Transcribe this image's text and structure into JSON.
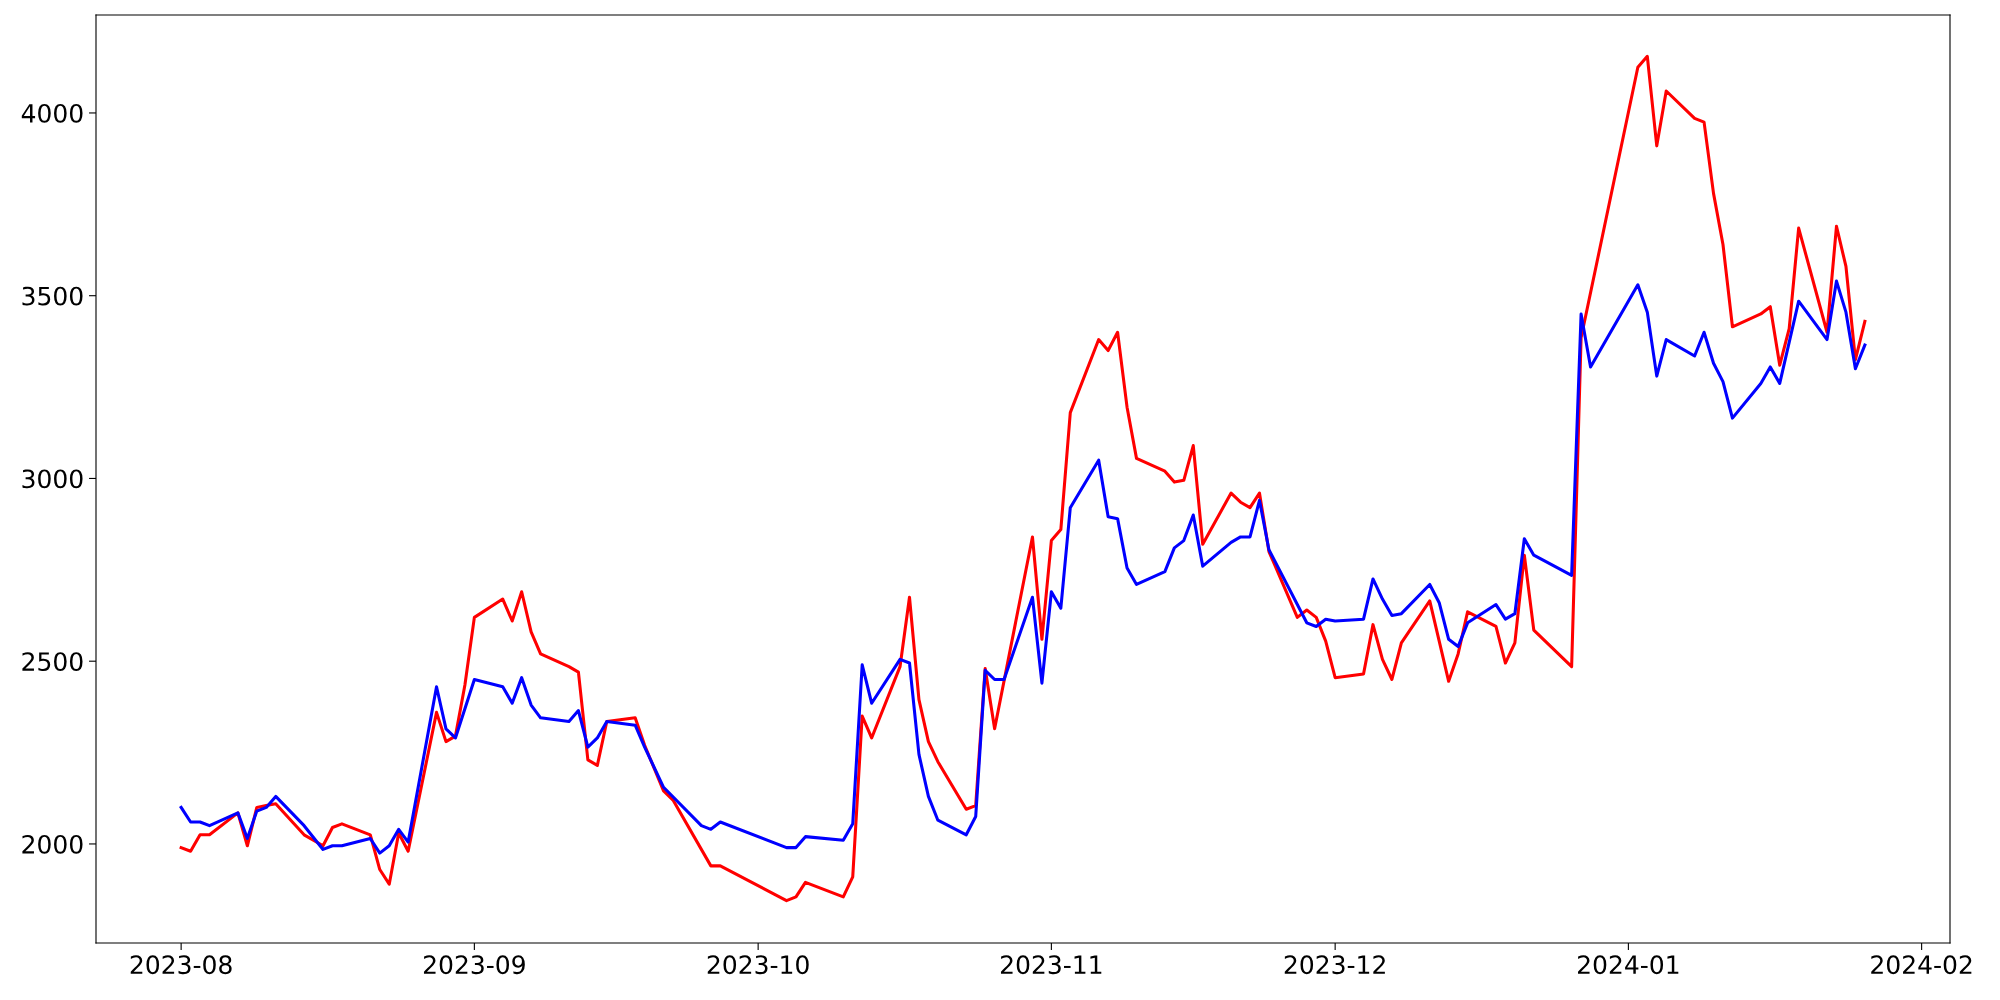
{
  "chart_data": {
    "type": "line",
    "xlim": [
      "2023-07-23",
      "2024-02-04"
    ],
    "xticks": [
      {
        "value": "2023-08-01",
        "label": "2023-08"
      },
      {
        "value": "2023-09-01",
        "label": "2023-09"
      },
      {
        "value": "2023-10-01",
        "label": "2023-10"
      },
      {
        "value": "2023-11-01",
        "label": "2023-11"
      },
      {
        "value": "2023-12-01",
        "label": "2023-12"
      },
      {
        "value": "2024-01-01",
        "label": "2024-01"
      },
      {
        "value": "2024-02-01",
        "label": "2024-02"
      }
    ],
    "ylim": [
      1729,
      4268
    ],
    "yticks": [
      2000,
      2500,
      3000,
      3500,
      4000
    ],
    "grid": false,
    "marker": "none",
    "line_style": "solid",
    "series": [
      {
        "color": "#ff0000",
        "x": [
          "2023-08-01",
          "2023-08-02",
          "2023-08-03",
          "2023-08-04",
          "2023-08-07",
          "2023-08-08",
          "2023-08-09",
          "2023-08-10",
          "2023-08-11",
          "2023-08-14",
          "2023-08-16",
          "2023-08-17",
          "2023-08-18",
          "2023-08-21",
          "2023-08-22",
          "2023-08-23",
          "2023-08-24",
          "2023-08-25",
          "2023-08-28",
          "2023-08-29",
          "2023-08-30",
          "2023-08-31",
          "2023-09-01",
          "2023-09-04",
          "2023-09-05",
          "2023-09-06",
          "2023-09-07",
          "2023-09-08",
          "2023-09-11",
          "2023-09-12",
          "2023-09-13",
          "2023-09-14",
          "2023-09-15",
          "2023-09-18",
          "2023-09-19",
          "2023-09-21",
          "2023-09-22",
          "2023-09-26",
          "2023-09-27",
          "2023-10-04",
          "2023-10-05",
          "2023-10-06",
          "2023-10-10",
          "2023-10-11",
          "2023-10-12",
          "2023-10-13",
          "2023-10-16",
          "2023-10-17",
          "2023-10-18",
          "2023-10-19",
          "2023-10-20",
          "2023-10-23",
          "2023-10-24",
          "2023-10-25",
          "2023-10-26",
          "2023-10-30",
          "2023-10-31",
          "2023-11-01",
          "2023-11-02",
          "2023-11-03",
          "2023-11-06",
          "2023-11-07",
          "2023-11-08",
          "2023-11-09",
          "2023-11-10",
          "2023-11-13",
          "2023-11-14",
          "2023-11-15",
          "2023-11-16",
          "2023-11-17",
          "2023-11-20",
          "2023-11-21",
          "2023-11-22",
          "2023-11-23",
          "2023-11-24",
          "2023-11-27",
          "2023-11-28",
          "2023-11-29",
          "2023-11-30",
          "2023-12-01",
          "2023-12-04",
          "2023-12-05",
          "2023-12-06",
          "2023-12-07",
          "2023-12-08",
          "2023-12-11",
          "2023-12-12",
          "2023-12-13",
          "2023-12-14",
          "2023-12-15",
          "2023-12-18",
          "2023-12-19",
          "2023-12-20",
          "2023-12-21",
          "2023-12-22",
          "2023-12-26",
          "2023-12-27",
          "2024-01-02",
          "2024-01-03",
          "2024-01-04",
          "2024-01-05",
          "2024-01-08",
          "2024-01-09",
          "2024-01-10",
          "2024-01-11",
          "2024-01-12",
          "2024-01-15",
          "2024-01-16",
          "2024-01-17",
          "2024-01-18",
          "2024-01-19",
          "2024-01-22",
          "2024-01-23",
          "2024-01-24",
          "2024-01-25",
          "2024-01-26"
        ],
        "values": [
          1990,
          1980,
          2025,
          2025,
          2085,
          1995,
          2100,
          2105,
          2110,
          2025,
          1995,
          2045,
          2055,
          2025,
          1930,
          1890,
          2030,
          1980,
          2360,
          2280,
          2295,
          2435,
          2620,
          2670,
          2610,
          2690,
          2580,
          2520,
          2485,
          2470,
          2230,
          2215,
          2335,
          2345,
          2270,
          2145,
          2120,
          1940,
          1940,
          1845,
          1855,
          1895,
          1855,
          1910,
          2350,
          2290,
          2485,
          2675,
          2395,
          2280,
          2225,
          2095,
          2105,
          2480,
          2315,
          2840,
          2560,
          2830,
          2860,
          3180,
          3380,
          3350,
          3400,
          3195,
          3055,
          3020,
          2990,
          2995,
          3090,
          2820,
          2960,
          2935,
          2920,
          2960,
          2800,
          2620,
          2640,
          2620,
          2555,
          2455,
          2465,
          2600,
          2505,
          2450,
          2550,
          2665,
          2555,
          2445,
          2520,
          2635,
          2595,
          2495,
          2550,
          2790,
          2585,
          2485,
          3385,
          4125,
          4155,
          3910,
          4060,
          3985,
          3975,
          3780,
          3640,
          3415,
          3450,
          3470,
          3310,
          3410,
          3685,
          3400,
          3690,
          3580,
          3325,
          3430
        ]
      },
      {
        "color": "#0000ff",
        "x": [
          "2023-08-01",
          "2023-08-02",
          "2023-08-03",
          "2023-08-04",
          "2023-08-07",
          "2023-08-08",
          "2023-08-09",
          "2023-08-10",
          "2023-08-11",
          "2023-08-14",
          "2023-08-16",
          "2023-08-17",
          "2023-08-18",
          "2023-08-21",
          "2023-08-22",
          "2023-08-23",
          "2023-08-24",
          "2023-08-25",
          "2023-08-28",
          "2023-08-29",
          "2023-08-30",
          "2023-09-01",
          "2023-09-04",
          "2023-09-05",
          "2023-09-06",
          "2023-09-07",
          "2023-09-08",
          "2023-09-11",
          "2023-09-12",
          "2023-09-13",
          "2023-09-14",
          "2023-09-15",
          "2023-09-18",
          "2023-09-19",
          "2023-09-21",
          "2023-09-25",
          "2023-09-26",
          "2023-09-27",
          "2023-10-04",
          "2023-10-05",
          "2023-10-06",
          "2023-10-10",
          "2023-10-11",
          "2023-10-12",
          "2023-10-13",
          "2023-10-16",
          "2023-10-17",
          "2023-10-18",
          "2023-10-19",
          "2023-10-20",
          "2023-10-23",
          "2023-10-24",
          "2023-10-25",
          "2023-10-26",
          "2023-10-27",
          "2023-10-30",
          "2023-10-31",
          "2023-11-01",
          "2023-11-02",
          "2023-11-03",
          "2023-11-06",
          "2023-11-07",
          "2023-11-08",
          "2023-11-09",
          "2023-11-10",
          "2023-11-13",
          "2023-11-14",
          "2023-11-15",
          "2023-11-16",
          "2023-11-17",
          "2023-11-20",
          "2023-11-21",
          "2023-11-22",
          "2023-11-23",
          "2023-11-24",
          "2023-11-28",
          "2023-11-29",
          "2023-11-30",
          "2023-12-01",
          "2023-12-04",
          "2023-12-05",
          "2023-12-06",
          "2023-12-07",
          "2023-12-08",
          "2023-12-11",
          "2023-12-12",
          "2023-12-13",
          "2023-12-14",
          "2023-12-15",
          "2023-12-18",
          "2023-12-19",
          "2023-12-20",
          "2023-12-21",
          "2023-12-22",
          "2023-12-26",
          "2023-12-27",
          "2023-12-28",
          "2024-01-02",
          "2024-01-03",
          "2024-01-04",
          "2024-01-05",
          "2024-01-08",
          "2024-01-09",
          "2024-01-10",
          "2024-01-11",
          "2024-01-12",
          "2024-01-15",
          "2024-01-16",
          "2024-01-17",
          "2024-01-19",
          "2024-01-22",
          "2024-01-23",
          "2024-01-24",
          "2024-01-25",
          "2024-01-26"
        ],
        "values": [
          2100,
          2060,
          2060,
          2050,
          2085,
          2015,
          2090,
          2100,
          2130,
          2050,
          1985,
          1995,
          1995,
          2015,
          1975,
          1995,
          2040,
          2005,
          2430,
          2315,
          2290,
          2450,
          2430,
          2385,
          2455,
          2380,
          2345,
          2335,
          2365,
          2265,
          2290,
          2335,
          2325,
          2265,
          2155,
          2050,
          2040,
          2060,
          1990,
          1990,
          2020,
          2010,
          2055,
          2490,
          2385,
          2505,
          2495,
          2245,
          2130,
          2065,
          2025,
          2075,
          2475,
          2450,
          2450,
          2675,
          2440,
          2690,
          2645,
          2920,
          3050,
          2895,
          2890,
          2755,
          2710,
          2745,
          2810,
          2830,
          2900,
          2760,
          2825,
          2840,
          2840,
          2940,
          2805,
          2605,
          2595,
          2615,
          2610,
          2615,
          2725,
          2670,
          2625,
          2630,
          2710,
          2660,
          2560,
          2540,
          2605,
          2655,
          2615,
          2630,
          2835,
          2790,
          2735,
          3450,
          3305,
          3530,
          3455,
          3280,
          3380,
          3335,
          3400,
          3315,
          3265,
          3165,
          3260,
          3305,
          3260,
          3485,
          3380,
          3540,
          3455,
          3300,
          3365
        ]
      }
    ]
  }
}
